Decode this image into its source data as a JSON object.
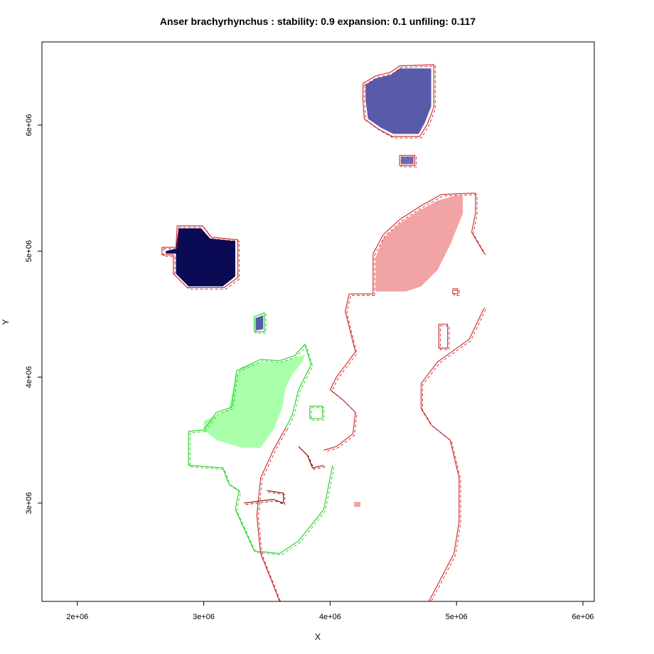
{
  "chart_data": {
    "type": "map",
    "title": "Anser brachyrhynchus : stability: 0.9 expansion: 0.1 unfiling: 0.117",
    "xlabel": "X",
    "ylabel": "Y",
    "xlim": [
      1720000,
      6090000
    ],
    "ylim": [
      2220000,
      6660000
    ],
    "x_ticks": [
      {
        "value": 2000000,
        "label": "2e+06"
      },
      {
        "value": 3000000,
        "label": "3e+06"
      },
      {
        "value": 4000000,
        "label": "4e+06"
      },
      {
        "value": 5000000,
        "label": "5e+06"
      },
      {
        "value": 6000000,
        "label": "6e+06"
      }
    ],
    "y_ticks": [
      {
        "value": 3000000,
        "label": "3e+06"
      },
      {
        "value": 4000000,
        "label": "4e+06"
      },
      {
        "value": 5000000,
        "label": "5e+06"
      },
      {
        "value": 6000000,
        "label": "6e+06"
      }
    ],
    "grid": false,
    "legend": "none",
    "colors": {
      "stability": "#0a0a55",
      "stability_light": "#8080cc",
      "expansion": "#f2a3a3",
      "unfilling": "#aaffaa",
      "contour_red": "#cc2222",
      "contour_dark_red": "#8b0000",
      "contour_green": "#22cc22"
    },
    "regions": [
      {
        "category": "stability",
        "fill": "#0a0a55",
        "points": [
          [
            2700000.0,
            5000000.0
          ],
          [
            2780000.0,
            5020000.0
          ],
          [
            2800000.0,
            5180000.0
          ],
          [
            2980000.0,
            5180000.0
          ],
          [
            3050000.0,
            5100000.0
          ],
          [
            3250000.0,
            5080000.0
          ],
          [
            3250000.0,
            4800000.0
          ],
          [
            3150000.0,
            4720000.0
          ],
          [
            2880000.0,
            4720000.0
          ],
          [
            2780000.0,
            4820000.0
          ],
          [
            2780000.0,
            4980000.0
          ],
          [
            2700000.0,
            4980000.0
          ]
        ]
      },
      {
        "category": "stability",
        "fill": "#5a5aaa",
        "points": [
          [
            4280000.0,
            6320000.0
          ],
          [
            4360000.0,
            6370000.0
          ],
          [
            4480000.0,
            6400000.0
          ],
          [
            4550000.0,
            6450000.0
          ],
          [
            4800000.0,
            6450000.0
          ],
          [
            4800000.0,
            6150000.0
          ],
          [
            4750000.0,
            6020000.0
          ],
          [
            4700000.0,
            5930000.0
          ],
          [
            4500000.0,
            5930000.0
          ],
          [
            4400000.0,
            5980000.0
          ],
          [
            4300000.0,
            6050000.0
          ],
          [
            4280000.0,
            6200000.0
          ]
        ]
      },
      {
        "category": "stability",
        "fill": "#6a6abb",
        "points": [
          [
            4560000.0,
            5750000.0
          ],
          [
            4660000.0,
            5750000.0
          ],
          [
            4660000.0,
            5690000.0
          ],
          [
            4560000.0,
            5690000.0
          ]
        ]
      },
      {
        "category": "stability",
        "fill": "#5a5aaa",
        "points": [
          [
            3410000.0,
            4470000.0
          ],
          [
            3470000.0,
            4490000.0
          ],
          [
            3470000.0,
            4380000.0
          ],
          [
            3410000.0,
            4370000.0
          ]
        ]
      },
      {
        "category": "expansion",
        "fill": "#f2a3a3",
        "points": [
          [
            4360000.0,
            4680000.0
          ],
          [
            4360000.0,
            4950000.0
          ],
          [
            4420000.0,
            5100000.0
          ],
          [
            4550000.0,
            5220000.0
          ],
          [
            4700000.0,
            5320000.0
          ],
          [
            4850000.0,
            5400000.0
          ],
          [
            4990000.0,
            5440000.0
          ],
          [
            5050000.0,
            5440000.0
          ],
          [
            5050000.0,
            5300000.0
          ],
          [
            4950000.0,
            5050000.0
          ],
          [
            4850000.0,
            4850000.0
          ],
          [
            4720000.0,
            4720000.0
          ],
          [
            4600000.0,
            4680000.0
          ]
        ]
      },
      {
        "category": "expansion",
        "fill": "#f2a3a3",
        "points": [
          [
            4190000.0,
            3010000.0
          ],
          [
            4240000.0,
            3010000.0
          ],
          [
            4240000.0,
            2970000.0
          ],
          [
            4190000.0,
            2970000.0
          ]
        ]
      },
      {
        "category": "unfilling",
        "fill": "#aaffaa",
        "points": [
          [
            3000000.0,
            3580000.0
          ],
          [
            3100000.0,
            3500000.0
          ],
          [
            3300000.0,
            3440000.0
          ],
          [
            3450000.0,
            3440000.0
          ],
          [
            3550000.0,
            3580000.0
          ],
          [
            3620000.0,
            3750000.0
          ],
          [
            3650000.0,
            3920000.0
          ],
          [
            3700000.0,
            4020000.0
          ],
          [
            3780000.0,
            4120000.0
          ],
          [
            3800000.0,
            4180000.0
          ],
          [
            3720000.0,
            4150000.0
          ],
          [
            3600000.0,
            4120000.0
          ],
          [
            3450000.0,
            4120000.0
          ],
          [
            3300000.0,
            4080000.0
          ],
          [
            3260000.0,
            4020000.0
          ],
          [
            3220000.0,
            3850000.0
          ],
          [
            3200000.0,
            3750000.0
          ],
          [
            3100000.0,
            3700000.0
          ],
          [
            3000000.0,
            3650000.0
          ]
        ]
      }
    ],
    "contours": [
      {
        "category": "stability",
        "color": "#cc2222",
        "points": [
          [
            2670000.0,
            5030000.0
          ],
          [
            2780000.0,
            5030000.0
          ],
          [
            2790000.0,
            5200000.0
          ],
          [
            2990000.0,
            5200000.0
          ],
          [
            3060000.0,
            5110000.0
          ],
          [
            3270000.0,
            5090000.0
          ],
          [
            3270000.0,
            4790000.0
          ],
          [
            3160000.0,
            4710000.0
          ],
          [
            2870000.0,
            4710000.0
          ],
          [
            2760000.0,
            4820000.0
          ],
          [
            2760000.0,
            4970000.0
          ],
          [
            2670000.0,
            4970000.0
          ],
          [
            2670000.0,
            5030000.0
          ]
        ]
      },
      {
        "category": "stability",
        "color": "#cc2222",
        "points": [
          [
            4260000.0,
            6330000.0
          ],
          [
            4360000.0,
            6390000.0
          ],
          [
            4480000.0,
            6420000.0
          ],
          [
            4550000.0,
            6470000.0
          ],
          [
            4820000.0,
            6480000.0
          ],
          [
            4820000.0,
            6140000.0
          ],
          [
            4770000.0,
            6010000.0
          ],
          [
            4710000.0,
            5910000.0
          ],
          [
            4490000.0,
            5910000.0
          ],
          [
            4380000.0,
            5970000.0
          ],
          [
            4270000.0,
            6050000.0
          ],
          [
            4260000.0,
            6200000.0
          ],
          [
            4260000.0,
            6330000.0
          ]
        ]
      },
      {
        "category": "stability",
        "color": "#cc2222",
        "points": [
          [
            4550000.0,
            5760000.0
          ],
          [
            4670000.0,
            5760000.0
          ],
          [
            4670000.0,
            5680000.0
          ],
          [
            4550000.0,
            5680000.0
          ],
          [
            4550000.0,
            5760000.0
          ]
        ]
      },
      {
        "category": "stability",
        "color": "#22cc22",
        "points": [
          [
            3400000.0,
            4480000.0
          ],
          [
            3480000.0,
            4510000.0
          ],
          [
            3480000.0,
            4360000.0
          ],
          [
            3400000.0,
            4360000.0
          ],
          [
            3400000.0,
            4480000.0
          ]
        ]
      },
      {
        "category": "expansion",
        "color": "#cc2222",
        "points": [
          [
            4340000.0,
            4660000.0
          ],
          [
            4340000.0,
            4980000.0
          ],
          [
            4420000.0,
            5130000.0
          ],
          [
            4550000.0,
            5250000.0
          ],
          [
            4720000.0,
            5360000.0
          ],
          [
            4880000.0,
            5450000.0
          ],
          [
            5150000.0,
            5460000.0
          ],
          [
            5150000.0,
            5300000.0
          ],
          [
            5120000.0,
            5150000.0
          ],
          [
            5220000.0,
            4980000.0
          ]
        ]
      },
      {
        "category": "expansion",
        "color": "#cc2222",
        "points": [
          [
            4340000.0,
            4660000.0
          ],
          [
            4150000.0,
            4660000.0
          ],
          [
            4120000.0,
            4520000.0
          ],
          [
            4150000.0,
            4400000.0
          ],
          [
            4200000.0,
            4200000.0
          ],
          [
            4050000.0,
            4000000.0
          ],
          [
            4000000.0,
            3900000.0
          ],
          [
            4100000.0,
            3820000.0
          ],
          [
            4200000.0,
            3720000.0
          ],
          [
            4180000.0,
            3550000.0
          ],
          [
            4050000.0,
            3450000.0
          ],
          [
            3950000.0,
            3420000.0
          ]
        ]
      },
      {
        "category": "expansion",
        "color": "#cc2222",
        "points": [
          [
            5220000.0,
            4550000.0
          ],
          [
            5100000.0,
            4300000.0
          ],
          [
            4850000.0,
            4120000.0
          ],
          [
            4720000.0,
            3950000.0
          ],
          [
            4720000.0,
            3750000.0
          ],
          [
            4800000.0,
            3620000.0
          ],
          [
            4950000.0,
            3500000.0
          ],
          [
            5020000.0,
            3200000.0
          ],
          [
            5020000.0,
            2850000.0
          ],
          [
            4980000.0,
            2600000.0
          ],
          [
            4850000.0,
            2350000.0
          ],
          [
            4780000.0,
            2220000.0
          ]
        ]
      },
      {
        "category": "expansion",
        "color": "#cc2222",
        "points": [
          [
            4860000.0,
            4420000.0
          ],
          [
            4930000.0,
            4420000.0
          ],
          [
            4930000.0,
            4230000.0
          ],
          [
            4860000.0,
            4230000.0
          ],
          [
            4860000.0,
            4420000.0
          ]
        ]
      },
      {
        "category": "expansion",
        "color": "#cc2222",
        "points": [
          [
            4970000.0,
            4700000.0
          ],
          [
            5010000.0,
            4700000.0
          ],
          [
            5010000.0,
            4660000.0
          ],
          [
            4970000.0,
            4660000.0
          ],
          [
            4970000.0,
            4700000.0
          ]
        ]
      },
      {
        "category": "unfilling",
        "color": "#22cc22",
        "points": [
          [
            3000000.0,
            3580000.0
          ],
          [
            2880000.0,
            3570000.0
          ],
          [
            2880000.0,
            3300000.0
          ],
          [
            3150000.0,
            3280000.0
          ],
          [
            3200000.0,
            3150000.0
          ],
          [
            3280000.0,
            3100000.0
          ],
          [
            3250000.0,
            2950000.0
          ],
          [
            3400000.0,
            2620000.0
          ],
          [
            3600000.0,
            2600000.0
          ],
          [
            3750000.0,
            2700000.0
          ],
          [
            3950000.0,
            2950000.0
          ],
          [
            4020000.0,
            3300000.0
          ]
        ]
      },
      {
        "category": "unfilling",
        "color": "#22cc22",
        "points": [
          [
            3000000.0,
            3580000.0
          ],
          [
            3100000.0,
            3720000.0
          ],
          [
            3220000.0,
            3760000.0
          ],
          [
            3260000.0,
            4050000.0
          ],
          [
            3450000.0,
            4140000.0
          ],
          [
            3600000.0,
            4130000.0
          ],
          [
            3720000.0,
            4170000.0
          ],
          [
            3800000.0,
            4260000.0
          ],
          [
            3850000.0,
            4100000.0
          ],
          [
            3750000.0,
            3900000.0
          ],
          [
            3700000.0,
            3700000.0
          ],
          [
            3650000.0,
            3600000.0
          ]
        ]
      },
      {
        "category": "unfilling",
        "color": "#22cc22",
        "points": [
          [
            3840000.0,
            3770000.0
          ],
          [
            3940000.0,
            3770000.0
          ],
          [
            3940000.0,
            3670000.0
          ],
          [
            3840000.0,
            3670000.0
          ],
          [
            3840000.0,
            3770000.0
          ]
        ]
      },
      {
        "category": "expansion",
        "color": "#cc2222",
        "points": [
          [
            3650000.0,
            3600000.0
          ],
          [
            3550000.0,
            3420000.0
          ],
          [
            3450000.0,
            3200000.0
          ],
          [
            3420000.0,
            2900000.0
          ],
          [
            3450000.0,
            2600000.0
          ],
          [
            3550000.0,
            2350000.0
          ],
          [
            3600000.0,
            2220000.0
          ]
        ]
      },
      {
        "category": "expansion",
        "color": "#8b0000",
        "points": [
          [
            3750000.0,
            3450000.0
          ],
          [
            3820000.0,
            3380000.0
          ],
          [
            3860000.0,
            3280000.0
          ],
          [
            3950000.0,
            3300000.0
          ]
        ]
      },
      {
        "category": "expansion",
        "color": "#8b0000",
        "points": [
          [
            3320000.0,
            3000000.0
          ],
          [
            3550000.0,
            3030000.0
          ],
          [
            3630000.0,
            3000000.0
          ],
          [
            3630000.0,
            3080000.0
          ],
          [
            3500000.0,
            3100000.0
          ]
        ]
      }
    ]
  }
}
